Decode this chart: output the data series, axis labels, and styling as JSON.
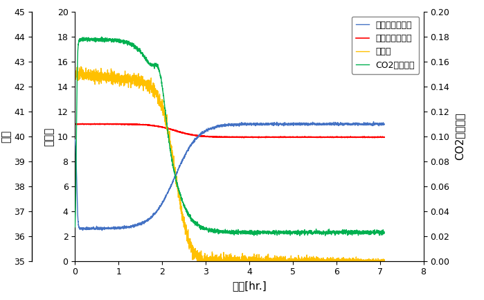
{
  "xlabel": "時間[hr.]",
  "ylabel_left": "温度",
  "ylabel_left2": "反応熱",
  "ylabel_right": "CO2吸収速度",
  "xlim": [
    0,
    8
  ],
  "ylim_left": [
    35,
    45
  ],
  "ylim_right": [
    0.0,
    0.2
  ],
  "ylim_mid": [
    0,
    20
  ],
  "xticks": [
    0,
    1,
    2,
    3,
    4,
    5,
    6,
    7,
    8
  ],
  "yticks_left": [
    35,
    36,
    37,
    38,
    39,
    40,
    41,
    42,
    43,
    44,
    45
  ],
  "yticks_mid": [
    0,
    2,
    4,
    6,
    8,
    10,
    12,
    14,
    16,
    18,
    20
  ],
  "yticks_right": [
    0.0,
    0.02,
    0.04,
    0.06,
    0.08,
    0.1,
    0.12,
    0.14,
    0.16,
    0.18,
    0.2
  ],
  "legend_labels": [
    "ジャケット温度",
    "リアクター温度",
    "反応熱",
    "CO2吸収速度"
  ],
  "colors": {
    "jacket": "#4472C4",
    "reactor": "#FF0000",
    "reaction_heat": "#FFC000",
    "co2": "#00B050"
  },
  "background_color": "#FFFFFF"
}
